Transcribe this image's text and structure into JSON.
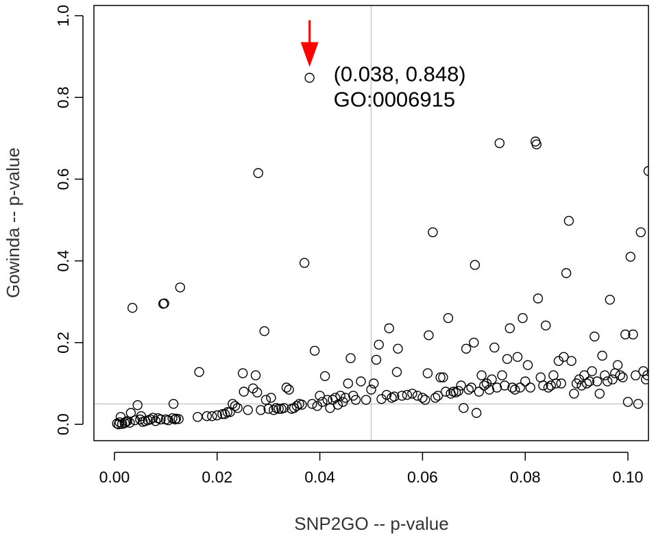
{
  "chart_data": {
    "type": "scatter",
    "title": "",
    "xlabel": "SNP2GO -- p-value",
    "ylabel": "Gowinda -- p-value",
    "xlim": [
      -0.004,
      0.104
    ],
    "ylim": [
      -0.04,
      1.025
    ],
    "x_ticks": [
      "0.00",
      "0.02",
      "0.04",
      "0.06",
      "0.08",
      "0.10"
    ],
    "y_ticks": [
      "0.0",
      "0.2",
      "0.4",
      "0.6",
      "0.8",
      "1.0"
    ],
    "reference_lines": {
      "vertical_x": 0.05,
      "horizontal_y": 0.05
    },
    "grid": false,
    "legend": "none",
    "annotation": {
      "point": [
        0.038,
        0.848
      ],
      "label_line1": "(0.038, 0.848)",
      "label_line2": "GO:0006915",
      "arrow_color": "#ff0000"
    },
    "series": [
      {
        "marker": "open-circle",
        "points": [
          [
            0.0005,
            0.002
          ],
          [
            0.0008,
            0.0
          ],
          [
            0.001,
            0.005
          ],
          [
            0.0012,
            0.018
          ],
          [
            0.0015,
            0.001
          ],
          [
            0.002,
            0.003
          ],
          [
            0.0022,
            0.006
          ],
          [
            0.0025,
            0.008
          ],
          [
            0.003,
            0.004
          ],
          [
            0.0032,
            0.028
          ],
          [
            0.0035,
            0.285
          ],
          [
            0.004,
            0.01
          ],
          [
            0.0045,
            0.047
          ],
          [
            0.005,
            0.012
          ],
          [
            0.0052,
            0.02
          ],
          [
            0.0055,
            0.006
          ],
          [
            0.006,
            0.008
          ],
          [
            0.0065,
            0.01
          ],
          [
            0.007,
            0.012
          ],
          [
            0.0075,
            0.016
          ],
          [
            0.008,
            0.008
          ],
          [
            0.0085,
            0.015
          ],
          [
            0.009,
            0.012
          ],
          [
            0.0095,
            0.295
          ],
          [
            0.0097,
            0.296
          ],
          [
            0.01,
            0.012
          ],
          [
            0.0105,
            0.01
          ],
          [
            0.0113,
            0.015
          ],
          [
            0.0115,
            0.05
          ],
          [
            0.0118,
            0.012
          ],
          [
            0.012,
            0.014
          ],
          [
            0.0125,
            0.013
          ],
          [
            0.0128,
            0.335
          ],
          [
            0.0165,
            0.128
          ],
          [
            0.0162,
            0.018
          ],
          [
            0.018,
            0.02
          ],
          [
            0.019,
            0.02
          ],
          [
            0.02,
            0.022
          ],
          [
            0.021,
            0.025
          ],
          [
            0.0215,
            0.025
          ],
          [
            0.022,
            0.03
          ],
          [
            0.0225,
            0.03
          ],
          [
            0.023,
            0.05
          ],
          [
            0.0235,
            0.045
          ],
          [
            0.024,
            0.04
          ],
          [
            0.025,
            0.125
          ],
          [
            0.0252,
            0.08
          ],
          [
            0.026,
            0.035
          ],
          [
            0.027,
            0.088
          ],
          [
            0.0275,
            0.12
          ],
          [
            0.0278,
            0.078
          ],
          [
            0.028,
            0.615
          ],
          [
            0.0285,
            0.035
          ],
          [
            0.0292,
            0.228
          ],
          [
            0.0295,
            0.06
          ],
          [
            0.03,
            0.038
          ],
          [
            0.0305,
            0.065
          ],
          [
            0.031,
            0.035
          ],
          [
            0.0315,
            0.04
          ],
          [
            0.032,
            0.038
          ],
          [
            0.0325,
            0.038
          ],
          [
            0.033,
            0.04
          ],
          [
            0.0335,
            0.09
          ],
          [
            0.034,
            0.085
          ],
          [
            0.0345,
            0.038
          ],
          [
            0.035,
            0.04
          ],
          [
            0.0355,
            0.045
          ],
          [
            0.036,
            0.05
          ],
          [
            0.0365,
            0.048
          ],
          [
            0.037,
            0.395
          ],
          [
            0.038,
            0.848
          ],
          [
            0.0385,
            0.05
          ],
          [
            0.039,
            0.18
          ],
          [
            0.0395,
            0.045
          ],
          [
            0.04,
            0.07
          ],
          [
            0.0405,
            0.055
          ],
          [
            0.041,
            0.118
          ],
          [
            0.0415,
            0.06
          ],
          [
            0.042,
            0.04
          ],
          [
            0.0425,
            0.06
          ],
          [
            0.043,
            0.065
          ],
          [
            0.0435,
            0.048
          ],
          [
            0.044,
            0.07
          ],
          [
            0.0445,
            0.055
          ],
          [
            0.045,
            0.065
          ],
          [
            0.0455,
            0.1
          ],
          [
            0.046,
            0.162
          ],
          [
            0.0465,
            0.07
          ],
          [
            0.047,
            0.06
          ],
          [
            0.048,
            0.105
          ],
          [
            0.049,
            0.06
          ],
          [
            0.05,
            0.085
          ],
          [
            0.0505,
            0.1
          ],
          [
            0.051,
            0.158
          ],
          [
            0.0515,
            0.195
          ],
          [
            0.052,
            0.062
          ],
          [
            0.053,
            0.072
          ],
          [
            0.0535,
            0.235
          ],
          [
            0.054,
            0.065
          ],
          [
            0.0545,
            0.068
          ],
          [
            0.055,
            0.128
          ],
          [
            0.0552,
            0.185
          ],
          [
            0.056,
            0.07
          ],
          [
            0.057,
            0.072
          ],
          [
            0.058,
            0.075
          ],
          [
            0.059,
            0.07
          ],
          [
            0.06,
            0.065
          ],
          [
            0.0605,
            0.06
          ],
          [
            0.061,
            0.125
          ],
          [
            0.0612,
            0.218
          ],
          [
            0.062,
            0.47
          ],
          [
            0.0625,
            0.065
          ],
          [
            0.063,
            0.07
          ],
          [
            0.0635,
            0.115
          ],
          [
            0.064,
            0.115
          ],
          [
            0.0645,
            0.08
          ],
          [
            0.065,
            0.26
          ],
          [
            0.0655,
            0.075
          ],
          [
            0.066,
            0.08
          ],
          [
            0.0665,
            0.078
          ],
          [
            0.067,
            0.082
          ],
          [
            0.0675,
            0.095
          ],
          [
            0.068,
            0.04
          ],
          [
            0.0685,
            0.185
          ],
          [
            0.069,
            0.085
          ],
          [
            0.0695,
            0.09
          ],
          [
            0.07,
            0.2
          ],
          [
            0.0702,
            0.39
          ],
          [
            0.0705,
            0.028
          ],
          [
            0.071,
            0.08
          ],
          [
            0.0715,
            0.12
          ],
          [
            0.072,
            0.095
          ],
          [
            0.0725,
            0.1
          ],
          [
            0.073,
            0.085
          ],
          [
            0.0735,
            0.11
          ],
          [
            0.074,
            0.188
          ],
          [
            0.0745,
            0.09
          ],
          [
            0.075,
            0.688
          ],
          [
            0.0755,
            0.12
          ],
          [
            0.076,
            0.095
          ],
          [
            0.0765,
            0.16
          ],
          [
            0.077,
            0.235
          ],
          [
            0.0775,
            0.09
          ],
          [
            0.078,
            0.085
          ],
          [
            0.0785,
            0.165
          ],
          [
            0.079,
            0.09
          ],
          [
            0.0795,
            0.26
          ],
          [
            0.08,
            0.105
          ],
          [
            0.0805,
            0.145
          ],
          [
            0.081,
            0.09
          ],
          [
            0.082,
            0.692
          ],
          [
            0.0822,
            0.685
          ],
          [
            0.0825,
            0.308
          ],
          [
            0.083,
            0.115
          ],
          [
            0.0835,
            0.095
          ],
          [
            0.084,
            0.242
          ],
          [
            0.0845,
            0.09
          ],
          [
            0.085,
            0.095
          ],
          [
            0.0855,
            0.12
          ],
          [
            0.086,
            0.1
          ],
          [
            0.0865,
            0.155
          ],
          [
            0.087,
            0.1
          ],
          [
            0.0875,
            0.165
          ],
          [
            0.088,
            0.37
          ],
          [
            0.0885,
            0.498
          ],
          [
            0.089,
            0.155
          ],
          [
            0.0895,
            0.075
          ],
          [
            0.09,
            0.1
          ],
          [
            0.0905,
            0.11
          ],
          [
            0.091,
            0.095
          ],
          [
            0.0915,
            0.12
          ],
          [
            0.092,
            0.1
          ],
          [
            0.0925,
            0.105
          ],
          [
            0.093,
            0.13
          ],
          [
            0.0935,
            0.215
          ],
          [
            0.094,
            0.105
          ],
          [
            0.0945,
            0.075
          ],
          [
            0.095,
            0.168
          ],
          [
            0.0955,
            0.12
          ],
          [
            0.096,
            0.105
          ],
          [
            0.0965,
            0.305
          ],
          [
            0.097,
            0.11
          ],
          [
            0.0975,
            0.125
          ],
          [
            0.098,
            0.145
          ],
          [
            0.0985,
            0.12
          ],
          [
            0.099,
            0.115
          ],
          [
            0.0995,
            0.22
          ],
          [
            0.1,
            0.055
          ],
          [
            0.1005,
            0.41
          ],
          [
            0.101,
            0.22
          ],
          [
            0.1015,
            0.12
          ],
          [
            0.102,
            0.05
          ],
          [
            0.1025,
            0.47
          ],
          [
            0.103,
            0.13
          ],
          [
            0.1035,
            0.11
          ],
          [
            0.1038,
            0.12
          ],
          [
            0.104,
            0.62
          ]
        ]
      }
    ]
  }
}
